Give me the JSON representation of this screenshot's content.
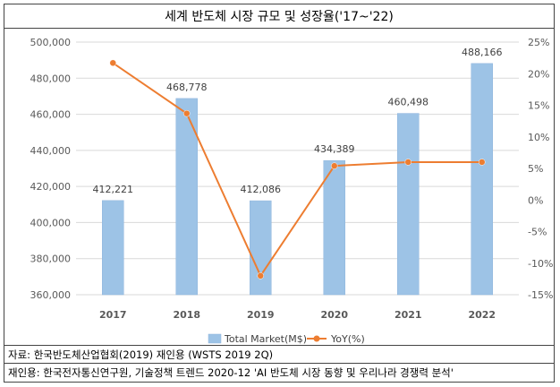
{
  "chart_data": {
    "type": "bar",
    "title": "세계 반도체 시장 규모 및 성장율('17~'22)",
    "categories": [
      "2017",
      "2018",
      "2019",
      "2020",
      "2021",
      "2022"
    ],
    "series": [
      {
        "name": "Total Market(M$)",
        "type": "bar",
        "axis": "left",
        "values": [
          412221,
          468778,
          412086,
          434389,
          460498,
          488166
        ],
        "labels": [
          "412,221",
          "468,778",
          "412,086",
          "434,389",
          "460,498",
          "488,166"
        ]
      },
      {
        "name": "YoY(%)",
        "type": "line",
        "axis": "right",
        "values": [
          21.7,
          13.7,
          -12.0,
          5.4,
          6.0,
          6.0
        ]
      }
    ],
    "y_left": {
      "ylim": [
        360000,
        500000
      ],
      "ticks": [
        "360,000",
        "380,000",
        "400,000",
        "420,000",
        "440,000",
        "460,000",
        "480,000",
        "500,000"
      ]
    },
    "y_right": {
      "ylim": [
        -15,
        25
      ],
      "ticks": [
        "-15%",
        "-10%",
        "-5%",
        "0%",
        "5%",
        "10%",
        "15%",
        "20%",
        "25%"
      ]
    },
    "grid": true,
    "legend": "bottom"
  },
  "colors": {
    "bar": "#9dc3e6",
    "line": "#ed7d31",
    "grid": "#d9d9d9",
    "text": "#595959"
  },
  "source": {
    "line1": "자료: 한국반도체산업협회(2019) 재인용 (WSTS 2019 2Q)",
    "line2": "재인용: 한국전자통신연구원, 기술정책 트렌드 2020-12 'AI 반도체 시장 동향 및 우리나라 경쟁력 분석'"
  }
}
